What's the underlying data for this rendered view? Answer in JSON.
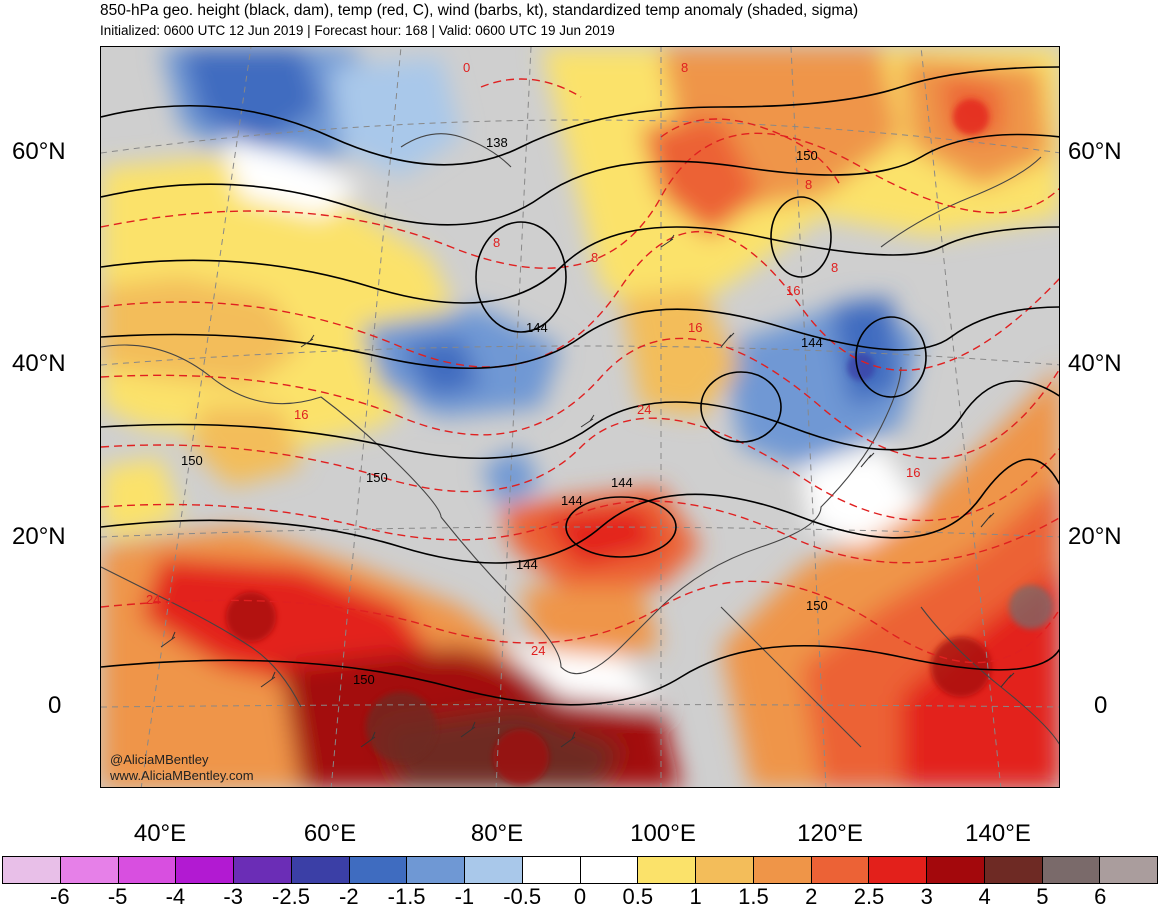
{
  "header": {
    "title": "850-hPa geo. height (black, dam), temp (red, C), wind (barbs, kt), standardized temp anomaly (shaded, sigma)",
    "subtitle": "Initialized: 0600 UTC 12 Jun 2019 | Forecast hour: 168 | Valid: 0600 UTC 19 Jun 2019"
  },
  "map": {
    "lat_labels": [
      "60°N",
      "40°N",
      "20°N",
      "0"
    ],
    "lon_labels": [
      "40°E",
      "60°E",
      "80°E",
      "100°E",
      "120°E",
      "140°E"
    ],
    "height_contour_labels": [
      "138",
      "144",
      "144",
      "144",
      "144",
      "144",
      "150",
      "150",
      "150",
      "150",
      "150"
    ],
    "temp_contour_labels": [
      "0",
      "8",
      "8",
      "8",
      "8",
      "16",
      "16",
      "16",
      "24",
      "24",
      "24",
      "8",
      "16"
    ],
    "credits": [
      "@AliciaMBentley",
      "www.AliciaMBentley.com"
    ]
  },
  "colorbar": {
    "colors": [
      "#e8bfe8",
      "#e680e8",
      "#d84fe0",
      "#b21ad2",
      "#6b2db6",
      "#3b3fa6",
      "#3f6cc0",
      "#6f98d4",
      "#a9c8ea",
      "#ffffff",
      "#ffffff",
      "#fbe26a",
      "#f3bd5a",
      "#ef9548",
      "#ec6236",
      "#e3201b",
      "#a3080c",
      "#6e2a24",
      "#7a6a6a",
      "#aa9d9d"
    ],
    "labels": [
      "-6",
      "-5",
      "-4",
      "-3",
      "-2.5",
      "-2",
      "-1.5",
      "-1",
      "-0.5",
      "0",
      "0.5",
      "1",
      "1.5",
      "2",
      "2.5",
      "3",
      "4",
      "5",
      "6"
    ]
  }
}
